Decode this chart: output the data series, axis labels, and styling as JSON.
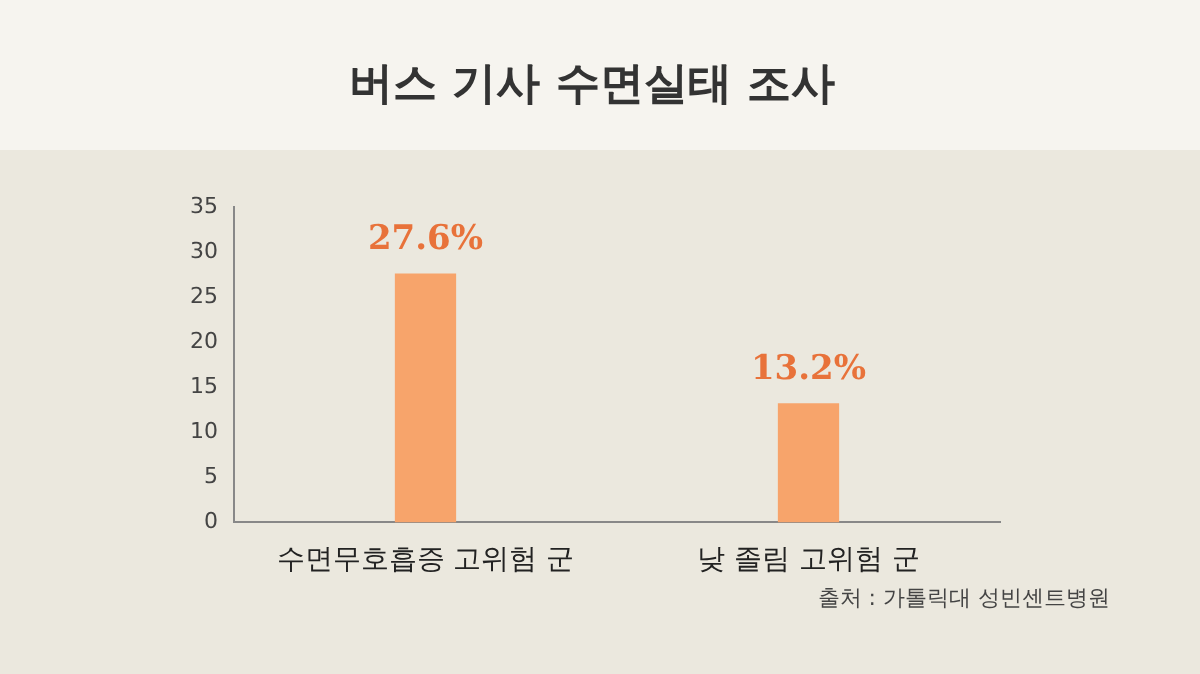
{
  "chart_data": {
    "type": "bar",
    "title": "버스 기사 수면실태 조사",
    "categories": [
      "수면무호흡증 고위험 군",
      "낮 졸림 고위험 군"
    ],
    "values": [
      27.6,
      13.2
    ],
    "color": "#f7a46b",
    "value_labels": [
      "27.6%",
      "13.2%"
    ],
    "ylim": [
      0,
      35
    ],
    "yticks": [
      0,
      5,
      10,
      15,
      20,
      25,
      30,
      35
    ],
    "grid": false,
    "legend": false,
    "annotations": [
      "출처 : 가톨릭대 성빈센트병원"
    ]
  }
}
